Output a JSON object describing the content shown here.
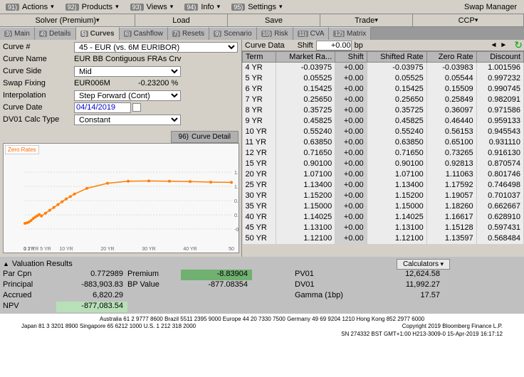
{
  "app_title": "Swap Manager",
  "top_menu": [
    {
      "num": "91)",
      "label": "Actions"
    },
    {
      "num": "92)",
      "label": "Products"
    },
    {
      "num": "93)",
      "label": "Views"
    },
    {
      "num": "94)",
      "label": "Info"
    },
    {
      "num": "95)",
      "label": "Settings"
    }
  ],
  "second_row": {
    "solver": "Solver (Premium)",
    "load": "Load",
    "save": "Save",
    "trade": "Trade",
    "ccp": "CCP"
  },
  "tabs": [
    {
      "num": "3)",
      "label": "Main"
    },
    {
      "num": "4)",
      "label": "Details"
    },
    {
      "num": "5)",
      "label": "Curves",
      "active": true
    },
    {
      "num": "6)",
      "label": "Cashflow"
    },
    {
      "num": "7)",
      "label": "Resets"
    },
    {
      "num": "9)",
      "label": "Scenario"
    },
    {
      "num": "10)",
      "label": "Risk"
    },
    {
      "num": "11)",
      "label": "CVA"
    },
    {
      "num": "12)",
      "label": "Matrix"
    }
  ],
  "form": {
    "curve_num_label": "Curve #",
    "curve_num_value": "45 - EUR (vs. 6M EURIBOR)",
    "curve_name_label": "Curve Name",
    "curve_name_value": "EUR BB Contiguous FRAs Crv",
    "curve_side_label": "Curve Side",
    "curve_side_value": "Mid",
    "swap_fixing_label": "Swap Fixing",
    "swap_fixing_value": "EUR006M",
    "swap_fixing_rate": "-0.23200 %",
    "interpolation_label": "Interpolation",
    "interpolation_value": "Step Forward (Cont)",
    "curve_date_label": "Curve Date",
    "curve_date_value": "04/14/2019",
    "dv01_label": "DV01 Calc Type",
    "dv01_value": "Constant"
  },
  "curve_detail": {
    "num": "96)",
    "label": "Curve Detail"
  },
  "chart": {
    "legend": "Zero Rates",
    "ylim": [
      -1.0,
      2.0
    ],
    "xlim": [
      0,
      50
    ],
    "xticks": [
      "0",
      "1 YR",
      "2 YR",
      "5 YR",
      "10 YR",
      "20 YR",
      "30 YR",
      "40 YR",
      "50"
    ],
    "series_color": "#ff7f00",
    "points": [
      [
        0,
        -0.3
      ],
      [
        0.5,
        -0.28
      ],
      [
        1,
        -0.25
      ],
      [
        1.5,
        -0.2
      ],
      [
        2,
        -0.13
      ],
      [
        2.5,
        -0.08
      ],
      [
        3,
        -0.03
      ],
      [
        3.5,
        0.01
      ],
      [
        4,
        -0.04
      ],
      [
        5,
        0.06
      ],
      [
        6,
        0.16
      ],
      [
        7,
        0.26
      ],
      [
        8,
        0.36
      ],
      [
        9,
        0.46
      ],
      [
        10,
        0.56
      ],
      [
        11,
        0.64
      ],
      [
        12,
        0.73
      ],
      [
        15,
        0.93
      ],
      [
        20,
        1.11
      ],
      [
        25,
        1.18
      ],
      [
        30,
        1.19
      ],
      [
        35,
        1.18
      ],
      [
        40,
        1.17
      ],
      [
        45,
        1.15
      ],
      [
        50,
        1.14
      ]
    ]
  },
  "shift_row": {
    "curve_data_label": "Curve Data",
    "shift_label": "Shift",
    "shift_value": "+0.00",
    "unit": "bp"
  },
  "table": {
    "columns": [
      "Term",
      "Market Ra...",
      "Shift",
      "Shifted Rate",
      "Zero Rate",
      "Discount"
    ],
    "rows": [
      [
        "4 YR",
        "-0.03975",
        "+0.00",
        "-0.03975",
        "-0.03983",
        "1.001596"
      ],
      [
        "5 YR",
        "0.05525",
        "+0.00",
        "0.05525",
        "0.05544",
        "0.997232"
      ],
      [
        "6 YR",
        "0.15425",
        "+0.00",
        "0.15425",
        "0.15509",
        "0.990745"
      ],
      [
        "7 YR",
        "0.25650",
        "+0.00",
        "0.25650",
        "0.25849",
        "0.982091"
      ],
      [
        "8 YR",
        "0.35725",
        "+0.00",
        "0.35725",
        "0.36097",
        "0.971586"
      ],
      [
        "9 YR",
        "0.45825",
        "+0.00",
        "0.45825",
        "0.46440",
        "0.959133"
      ],
      [
        "10 YR",
        "0.55240",
        "+0.00",
        "0.55240",
        "0.56153",
        "0.945543"
      ],
      [
        "11 YR",
        "0.63850",
        "+0.00",
        "0.63850",
        "0.65100",
        "0.931110"
      ],
      [
        "12 YR",
        "0.71650",
        "+0.00",
        "0.71650",
        "0.73265",
        "0.916130"
      ],
      [
        "15 YR",
        "0.90100",
        "+0.00",
        "0.90100",
        "0.92813",
        "0.870574"
      ],
      [
        "20 YR",
        "1.07100",
        "+0.00",
        "1.07100",
        "1.11063",
        "0.801746"
      ],
      [
        "25 YR",
        "1.13400",
        "+0.00",
        "1.13400",
        "1.17592",
        "0.746498"
      ],
      [
        "30 YR",
        "1.15200",
        "+0.00",
        "1.15200",
        "1.19057",
        "0.701037"
      ],
      [
        "35 YR",
        "1.15000",
        "+0.00",
        "1.15000",
        "1.18260",
        "0.662667"
      ],
      [
        "40 YR",
        "1.14025",
        "+0.00",
        "1.14025",
        "1.16617",
        "0.628910"
      ],
      [
        "45 YR",
        "1.13100",
        "+0.00",
        "1.13100",
        "1.15128",
        "0.597431"
      ],
      [
        "50 YR",
        "1.12100",
        "+0.00",
        "1.12100",
        "1.13597",
        "0.568484"
      ]
    ]
  },
  "valuation": {
    "title": "Valuation Results",
    "calculators": "Calculators",
    "items": [
      {
        "lbl": "Par Cpn",
        "val": "0.772989",
        "lbl2": "Premium",
        "val2": "-8.83904",
        "lbl3": "PV01",
        "val3": "12,624.58"
      },
      {
        "lbl": "Principal",
        "val": "-883,903.83",
        "lbl2": "BP Value",
        "val2": "-877.08354",
        "lbl3": "DV01",
        "val3": "11,992.27"
      },
      {
        "lbl": "Accrued",
        "val": "6,820.29",
        "lbl2": "",
        "val2": "",
        "lbl3": "Gamma (1bp)",
        "val3": "17.57"
      },
      {
        "lbl": "NPV",
        "val": "-877,083.54",
        "lbl2": "",
        "val2": "",
        "lbl3": "",
        "val3": ""
      }
    ]
  },
  "footer": {
    "line1": "Australia 61 2 9777 8600 Brazil 5511 2395 9000 Europe 44 20 7330 7500 Germany 49 69 9204 1210 Hong Kong 852 2977 6000",
    "line2a": "Japan 81 3 3201 8900      Singapore 65 6212 1000       U.S. 1 212 318 2000",
    "line2b": "Copyright 2019 Bloomberg Finance L.P.",
    "line3": "SN 274332 BST  GMT+1:00 H213-3009-0 15-Apr-2019 16:17:12"
  }
}
